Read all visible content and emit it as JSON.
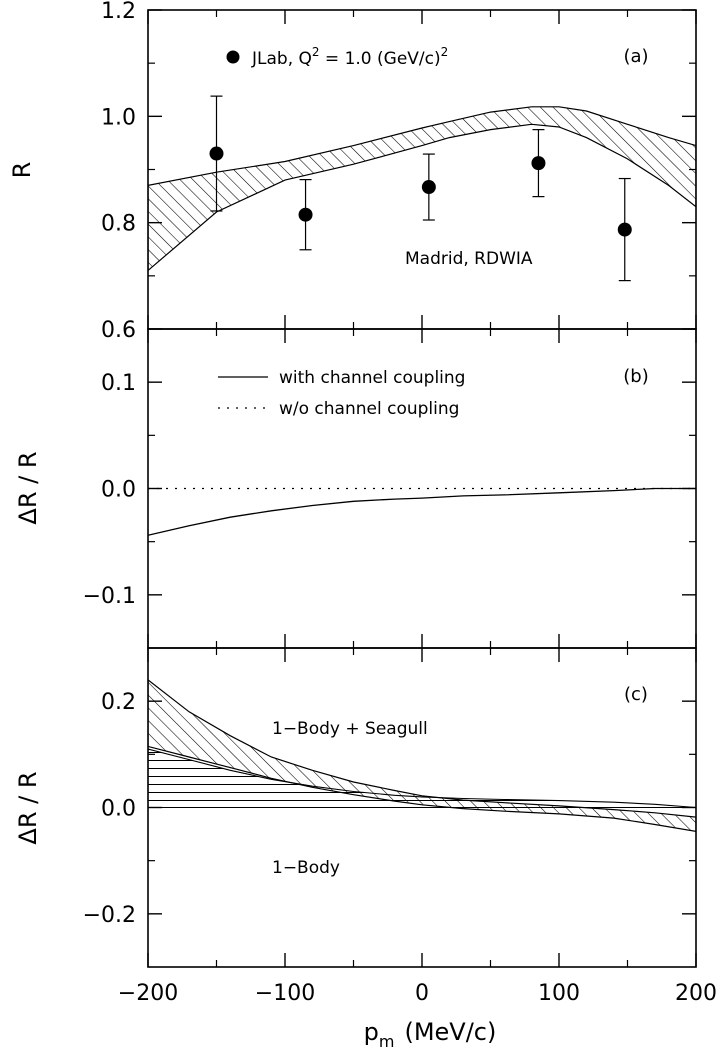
{
  "chart_data": {
    "type": "line",
    "xlabel_main": "p",
    "xlabel_sub": "m",
    "xlabel_unit": "(MeV/c)",
    "xlim": [
      -200,
      200
    ],
    "x_ticks": [
      -200,
      -100,
      0,
      100,
      200
    ],
    "x_tick_labels": [
      "−200",
      "−100",
      "0",
      "100",
      "200"
    ],
    "panels": [
      {
        "id": "a",
        "tag": "(a)",
        "ylabel": "R",
        "ylim": [
          0.6,
          1.2
        ],
        "y_ticks": [
          0.6,
          0.8,
          1.0,
          1.2
        ],
        "y_tick_labels": [
          "0.6",
          "0.8",
          "1.0",
          "1.2"
        ],
        "y_minor": [
          0.7,
          0.9,
          1.1
        ],
        "legend_prefix": "JLab, Q",
        "legend_sup1": "2",
        "legend_mid": " = 1.0 (GeV/c)",
        "legend_sup2": "2",
        "model_label": "Madrid, RDWIA",
        "data_points": {
          "x": [
            -150,
            -85,
            5,
            85,
            148
          ],
          "y": [
            0.93,
            0.815,
            0.867,
            0.912,
            0.787
          ],
          "yerr": [
            0.108,
            0.066,
            0.062,
            0.063,
            0.096
          ]
        },
        "band": {
          "x": [
            -200,
            -150,
            -100,
            -50,
            0,
            20,
            50,
            80,
            100,
            120,
            150,
            180,
            200
          ],
          "upper": [
            0.87,
            0.895,
            0.915,
            0.945,
            0.978,
            0.99,
            1.008,
            1.018,
            1.018,
            1.01,
            0.985,
            0.96,
            0.945
          ],
          "lower": [
            0.71,
            0.82,
            0.88,
            0.91,
            0.945,
            0.96,
            0.975,
            0.985,
            0.98,
            0.96,
            0.92,
            0.87,
            0.83
          ]
        }
      },
      {
        "id": "b",
        "tag": "(b)",
        "ylabel": "ΔR / R",
        "ylim": [
          -0.15,
          0.15
        ],
        "y_ticks": [
          -0.1,
          0.0,
          0.1
        ],
        "y_tick_labels": [
          "−0.1",
          "0.0",
          "0.1"
        ],
        "y_minor": [
          -0.05,
          0.05
        ],
        "legend": [
          {
            "label": "with channel coupling",
            "style": "solid"
          },
          {
            "label": "w/o channel coupling",
            "style": "dotted"
          }
        ],
        "series": [
          {
            "name": "with channel coupling",
            "x": [
              -200,
              -170,
              -140,
              -110,
              -80,
              -50,
              -20,
              0,
              30,
              60,
              100,
              140,
              170,
              200
            ],
            "y": [
              -0.044,
              -0.035,
              -0.027,
              -0.021,
              -0.016,
              -0.012,
              -0.01,
              -0.009,
              -0.007,
              -0.006,
              -0.004,
              -0.002,
              0.0,
              0.0
            ]
          },
          {
            "name": "w/o channel coupling",
            "x": [
              -200,
              200
            ],
            "y": [
              0.0,
              0.0
            ]
          }
        ]
      },
      {
        "id": "c",
        "tag": "(c)",
        "ylabel": "ΔR / R",
        "ylim": [
          -0.3,
          0.3
        ],
        "y_ticks": [
          -0.2,
          0.0,
          0.2
        ],
        "y_tick_labels": [
          "−0.2",
          "0.0",
          "0.2"
        ],
        "y_minor": [
          -0.1,
          0.1
        ],
        "label_upper": "1−Body + Seagull",
        "label_lower": "1−Body",
        "bands": [
          {
            "name": "1-Body + Seagull",
            "hatch": "diagonal",
            "x": [
              -200,
              -170,
              -140,
              -110,
              -80,
              -50,
              -20,
              0,
              30,
              60,
              100,
              140,
              170,
              200
            ],
            "upper": [
              0.24,
              0.18,
              0.135,
              0.095,
              0.07,
              0.048,
              0.032,
              0.022,
              0.014,
              0.009,
              0.003,
              -0.004,
              -0.01,
              -0.018
            ],
            "lower": [
              0.115,
              0.095,
              0.075,
              0.055,
              0.038,
              0.024,
              0.012,
              0.005,
              -0.002,
              -0.007,
              -0.012,
              -0.02,
              -0.032,
              -0.045
            ]
          },
          {
            "name": "1-Body",
            "hatch": "horizontal",
            "x": [
              -200,
              -170,
              -140,
              -110,
              -80,
              -50,
              -20,
              0,
              30,
              60,
              100,
              140,
              170,
              200
            ],
            "upper": [
              0.11,
              0.09,
              0.07,
              0.053,
              0.04,
              0.03,
              0.023,
              0.02,
              0.017,
              0.015,
              0.013,
              0.01,
              0.006,
              0.0
            ],
            "lower": [
              0.0,
              0.0,
              0.0,
              0.0,
              0.0,
              0.0,
              0.0,
              0.0,
              0.0,
              0.0,
              0.0,
              0.0,
              0.0,
              0.0
            ]
          }
        ]
      }
    ]
  }
}
